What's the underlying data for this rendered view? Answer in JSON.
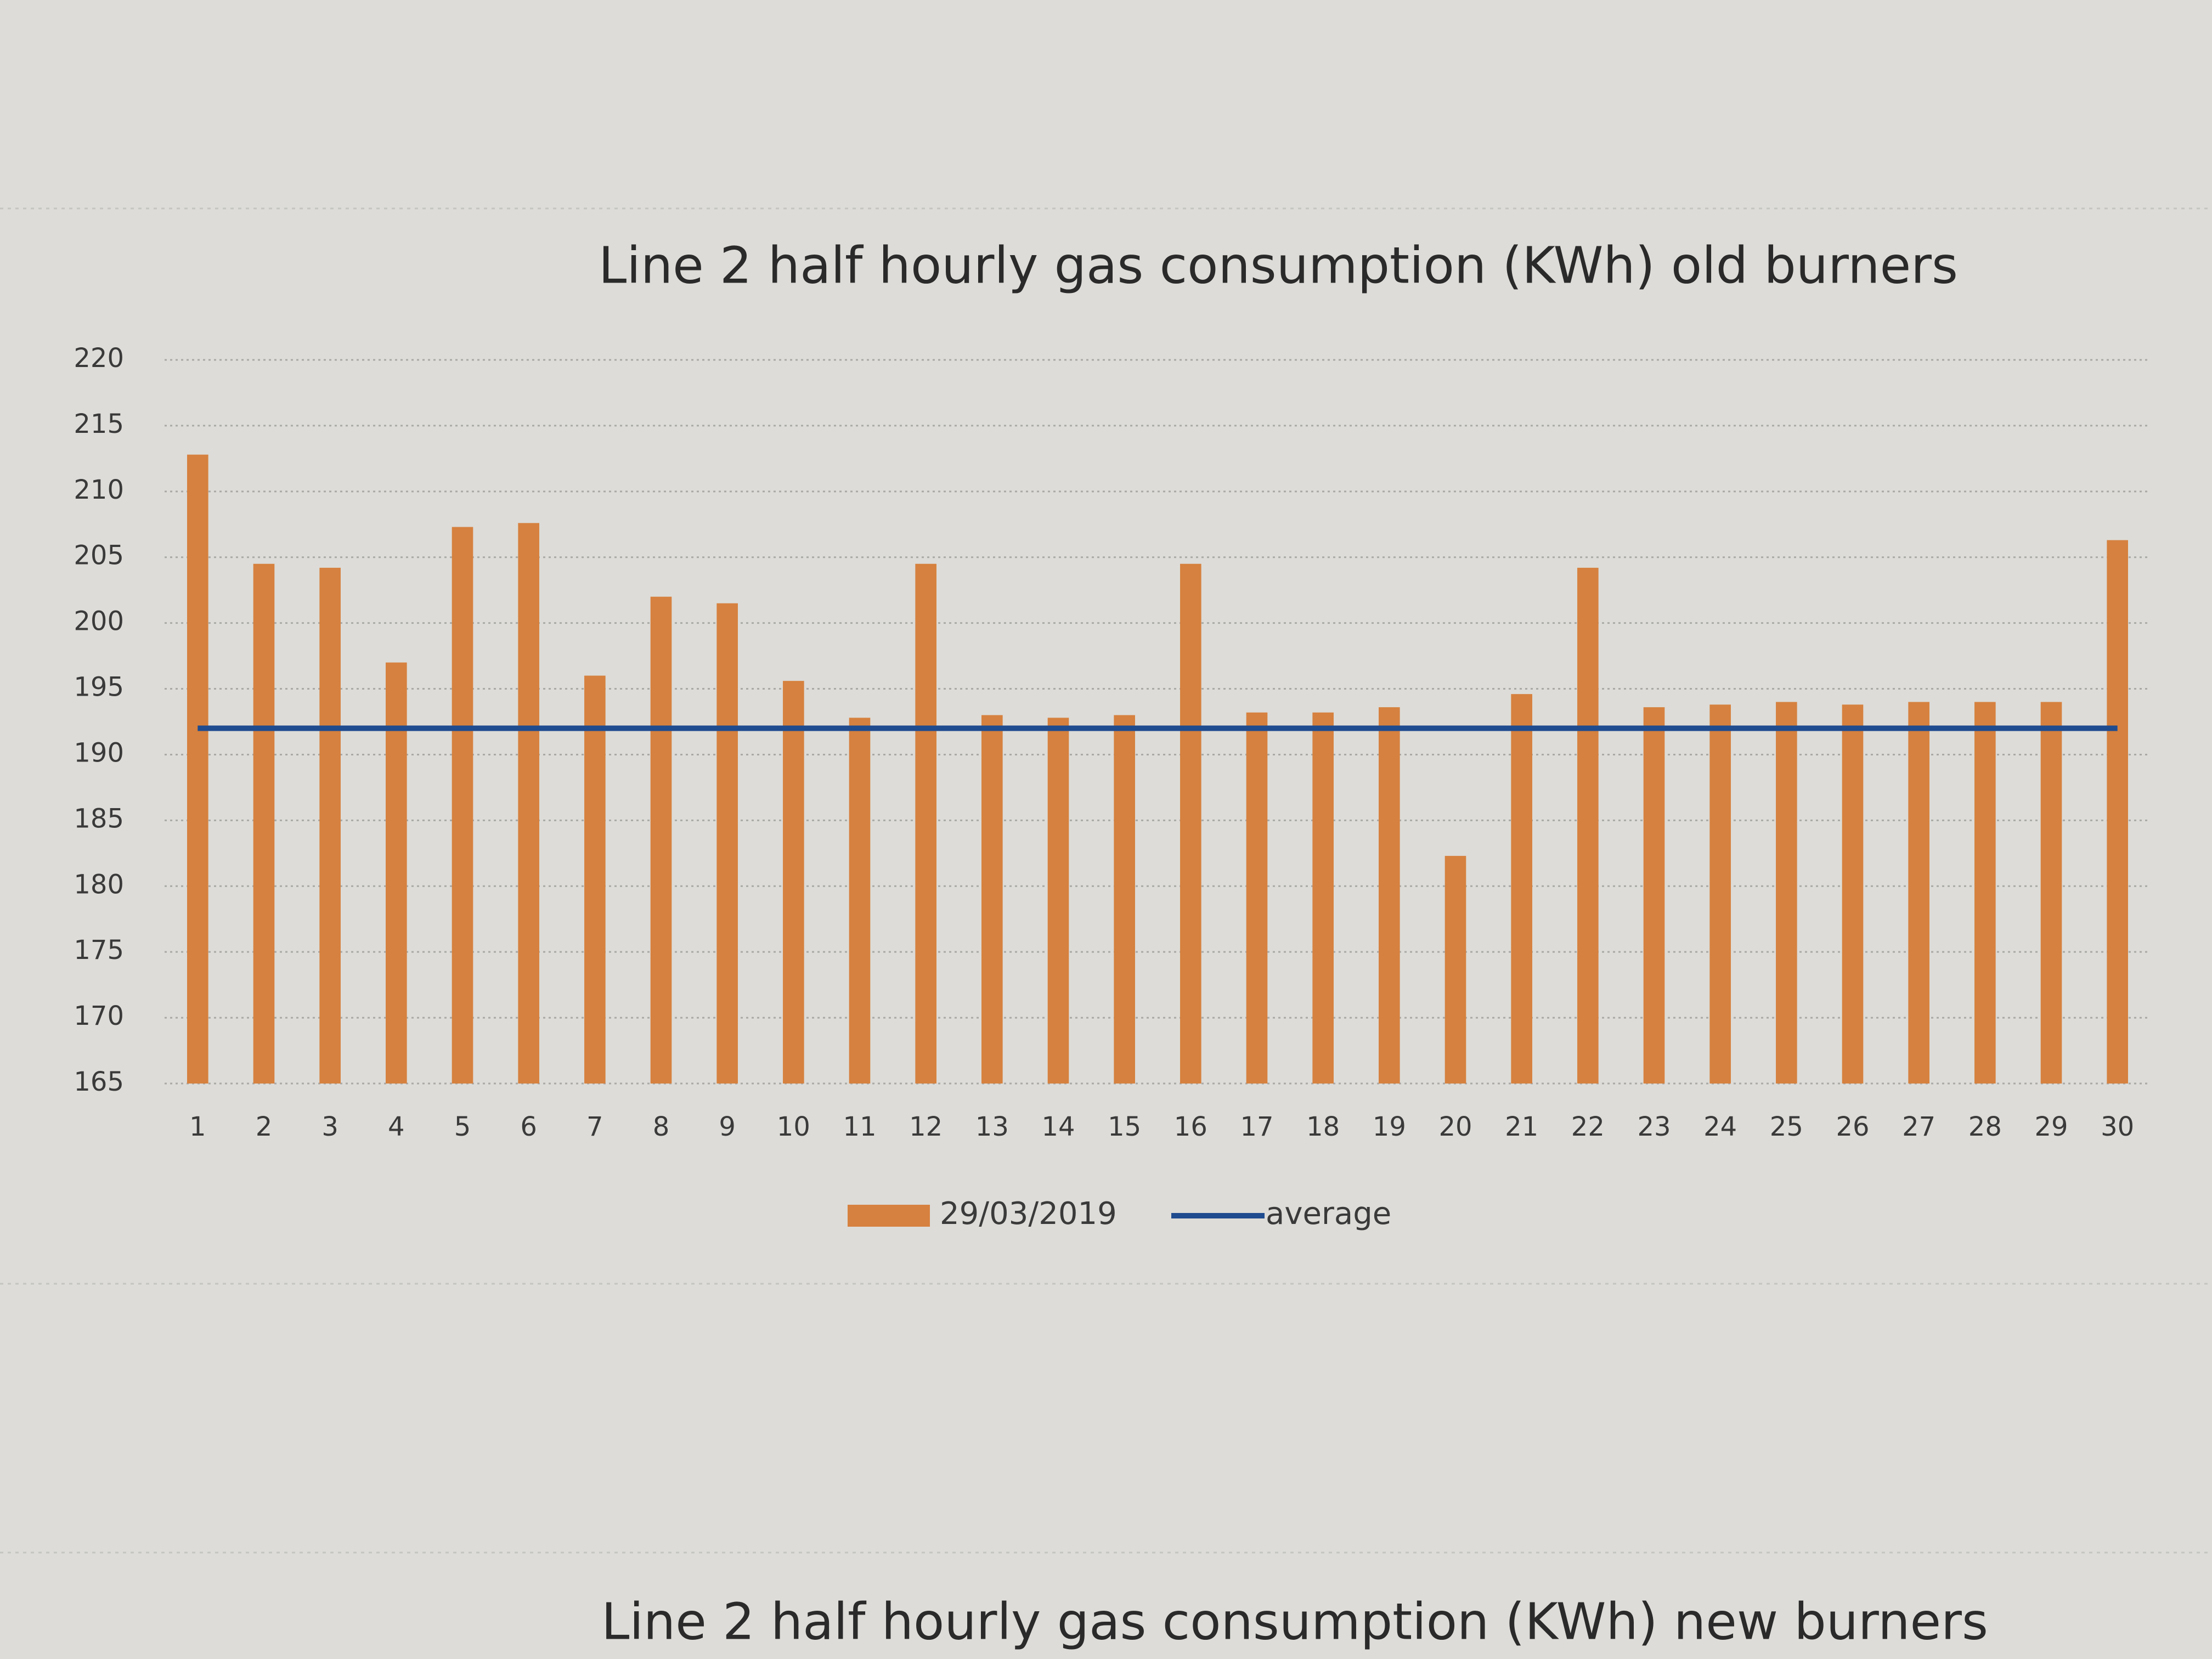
{
  "chart_data": {
    "type": "bar",
    "title": "Line 2 half hourly gas consumption (KWh) old burners",
    "categories": [
      "1",
      "2",
      "3",
      "4",
      "5",
      "6",
      "7",
      "8",
      "9",
      "10",
      "11",
      "12",
      "13",
      "14",
      "15",
      "16",
      "17",
      "18",
      "19",
      "20",
      "21",
      "22",
      "23",
      "24",
      "25",
      "26",
      "27",
      "28",
      "29",
      "30"
    ],
    "series": [
      {
        "name": "29/03/2019",
        "type": "bar",
        "color": "#d6813f",
        "values": [
          212.8,
          204.5,
          204.2,
          197,
          207.3,
          207.6,
          196,
          202,
          201.5,
          195.6,
          192.8,
          204.5,
          193,
          192.8,
          193,
          204.5,
          193.2,
          193.2,
          193.6,
          182.3,
          194.6,
          204.2,
          193.6,
          193.8,
          194,
          193.8,
          194,
          194,
          194,
          206.3
        ]
      },
      {
        "name": "average",
        "type": "line",
        "color": "#1f4b8f",
        "values": [
          192,
          192,
          192,
          192,
          192,
          192,
          192,
          192,
          192,
          192,
          192,
          192,
          192,
          192,
          192,
          192,
          192,
          192,
          192,
          192,
          192,
          192,
          192,
          192,
          192,
          192,
          192,
          192,
          192,
          192
        ]
      }
    ],
    "ylim": [
      165,
      220
    ],
    "yticks": [
      165,
      170,
      175,
      180,
      185,
      190,
      195,
      200,
      205,
      210,
      215,
      220
    ],
    "grid": true,
    "legend": "bottom"
  },
  "next_chart": {
    "title": "Line 2 half hourly gas consumption (KWh) new burners"
  }
}
